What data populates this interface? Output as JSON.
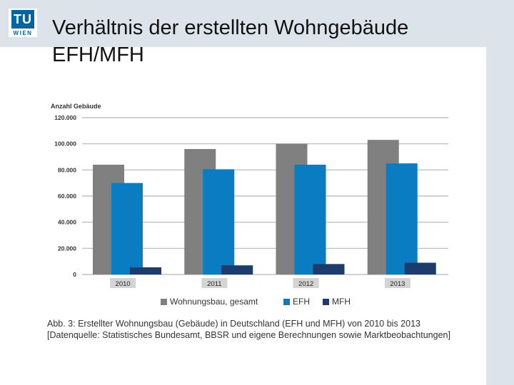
{
  "slide": {
    "title_line1": "Verhältnis der erstellten Wohngebäude",
    "title_line2": "EFH/MFH",
    "logo_text": "TU",
    "logo_subtext": "WIEN"
  },
  "caption": {
    "line1": "Abb. 3: Erstellter Wohnungsbau (Gebäude) in Deutschland (EFH und MFH) von 2010 bis 2013",
    "line2": "[Datenquelle: Statistisches Bundesamt, BBSR und eigene Berechnungen sowie Marktbeobachtungen]"
  },
  "colors": {
    "gesamt": "#808080",
    "efh": "#0a7dc2",
    "mfh": "#1d3c6e",
    "grid": "#b5b5b5",
    "label_bg": "#d4d4d4"
  },
  "chart_data": {
    "type": "bar",
    "ylabel": "Anzahl Gebäude",
    "ylim": [
      0,
      120000
    ],
    "yticks": [
      0,
      20000,
      40000,
      60000,
      80000,
      100000,
      120000
    ],
    "ytick_labels": [
      "0",
      "20.000",
      "40.000",
      "60.000",
      "80.000",
      "100.000",
      "120.000"
    ],
    "categories": [
      "2010",
      "2011",
      "2012",
      "2013"
    ],
    "series": [
      {
        "name": "Wohnungsbau, gesamt",
        "values": [
          84000,
          96000,
          100000,
          103000
        ]
      },
      {
        "name": "EFH",
        "values": [
          70000,
          80500,
          84000,
          85000
        ]
      },
      {
        "name": "MFH",
        "values": [
          5500,
          7000,
          8000,
          9000
        ]
      }
    ],
    "legend_position": "bottom",
    "grid": true
  }
}
